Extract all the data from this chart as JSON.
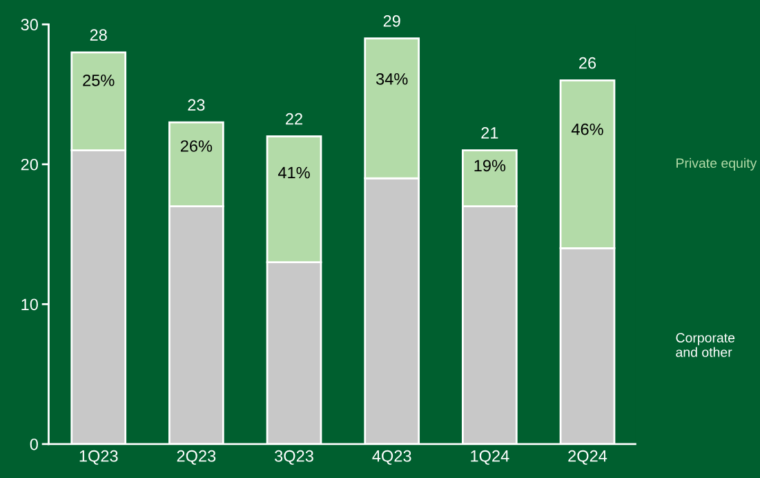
{
  "chart_data": {
    "type": "bar",
    "stacked": true,
    "categories": [
      "1Q23",
      "2Q23",
      "3Q23",
      "4Q23",
      "1Q24",
      "2Q24"
    ],
    "series": [
      {
        "name": "Corporate and other",
        "color": "#c8c8c8",
        "values": [
          21,
          17,
          13,
          19,
          17,
          14
        ]
      },
      {
        "name": "Private equity",
        "color": "#b3dba8",
        "values": [
          7,
          6,
          9,
          10,
          4,
          12
        ]
      }
    ],
    "totals": [
      "28",
      "23",
      "22",
      "29",
      "21",
      "26"
    ],
    "annotations": [
      "25%",
      "26%",
      "41%",
      "34%",
      "19%",
      "46%"
    ],
    "ylim": [
      0,
      30
    ],
    "yticks": [
      0,
      10,
      20,
      30
    ],
    "grid": false,
    "legend": "right"
  }
}
